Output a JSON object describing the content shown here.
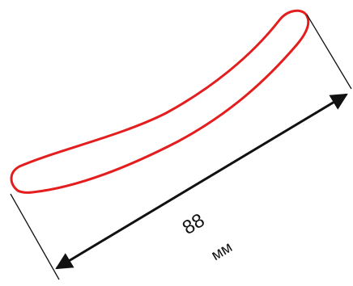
{
  "diagram": {
    "dimension_value": "88",
    "dimension_unit": "мм"
  },
  "colors": {
    "outline": "#e41e1e",
    "dimension_lines": "#111111",
    "background": "#ffffff"
  }
}
